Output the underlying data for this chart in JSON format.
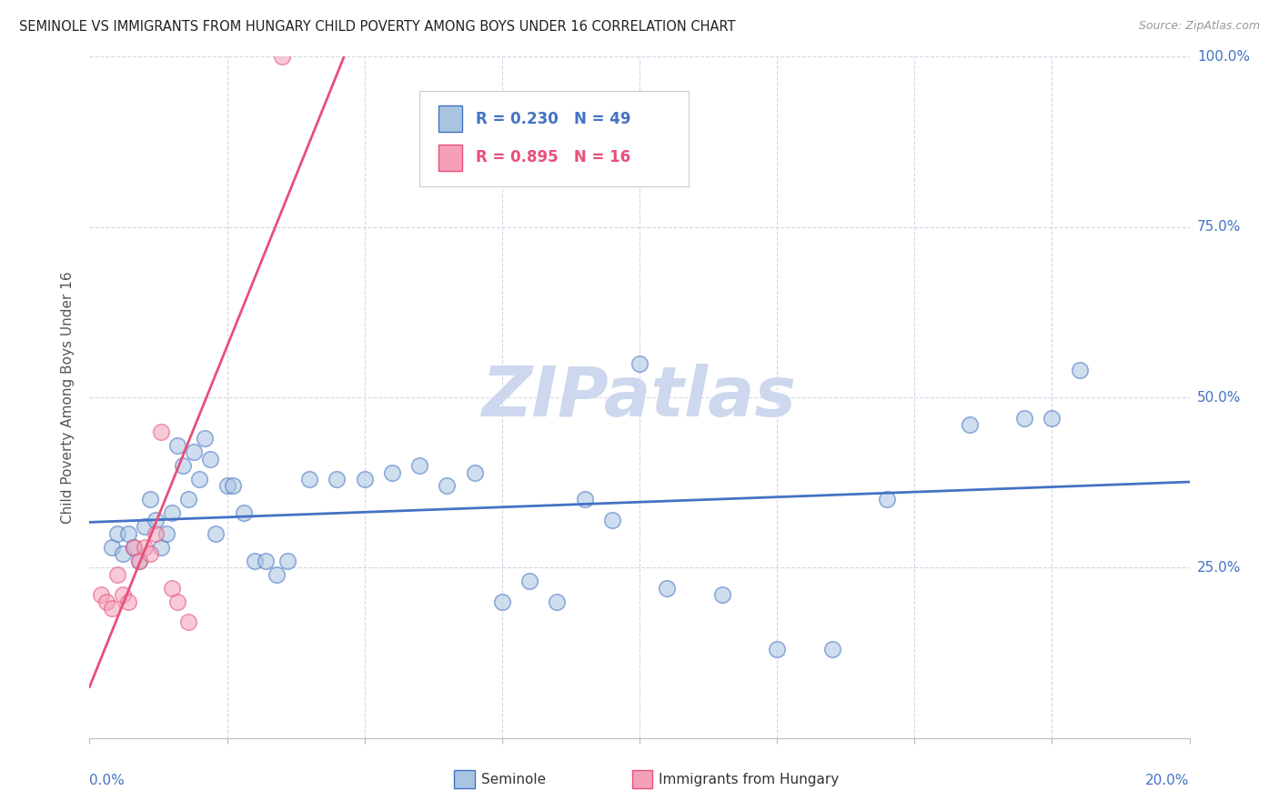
{
  "title": "SEMINOLE VS IMMIGRANTS FROM HUNGARY CHILD POVERTY AMONG BOYS UNDER 16 CORRELATION CHART",
  "source": "Source: ZipAtlas.com",
  "ylabel": "Child Poverty Among Boys Under 16",
  "xlim": [
    0.0,
    20.0
  ],
  "ylim": [
    0.0,
    100.0
  ],
  "legend_entries": [
    {
      "label": "Seminole",
      "face_color": "#a8c4e0",
      "edge_color": "#4472c4",
      "R": "0.230",
      "N": "49"
    },
    {
      "label": "Immigrants from Hungary",
      "face_color": "#f4a0b8",
      "edge_color": "#e8507a",
      "R": "0.895",
      "N": "16"
    }
  ],
  "seminole_scatter": [
    [
      0.4,
      28
    ],
    [
      0.5,
      30
    ],
    [
      0.6,
      27
    ],
    [
      0.7,
      30
    ],
    [
      0.8,
      28
    ],
    [
      0.9,
      26
    ],
    [
      1.0,
      31
    ],
    [
      1.1,
      35
    ],
    [
      1.2,
      32
    ],
    [
      1.3,
      28
    ],
    [
      1.4,
      30
    ],
    [
      1.5,
      33
    ],
    [
      1.6,
      43
    ],
    [
      1.7,
      40
    ],
    [
      1.8,
      35
    ],
    [
      1.9,
      42
    ],
    [
      2.0,
      38
    ],
    [
      2.1,
      44
    ],
    [
      2.2,
      41
    ],
    [
      2.3,
      30
    ],
    [
      2.5,
      37
    ],
    [
      2.6,
      37
    ],
    [
      2.8,
      33
    ],
    [
      3.0,
      26
    ],
    [
      3.2,
      26
    ],
    [
      3.4,
      24
    ],
    [
      3.6,
      26
    ],
    [
      4.0,
      38
    ],
    [
      4.5,
      38
    ],
    [
      5.0,
      38
    ],
    [
      5.5,
      39
    ],
    [
      6.0,
      40
    ],
    [
      6.5,
      37
    ],
    [
      7.0,
      39
    ],
    [
      7.5,
      20
    ],
    [
      8.0,
      23
    ],
    [
      8.5,
      20
    ],
    [
      9.0,
      35
    ],
    [
      9.5,
      32
    ],
    [
      10.0,
      55
    ],
    [
      10.5,
      22
    ],
    [
      11.5,
      21
    ],
    [
      12.5,
      13
    ],
    [
      13.5,
      13
    ],
    [
      14.5,
      35
    ],
    [
      16.0,
      46
    ],
    [
      17.0,
      47
    ],
    [
      17.5,
      47
    ],
    [
      18.0,
      54
    ]
  ],
  "hungary_scatter": [
    [
      0.2,
      21
    ],
    [
      0.3,
      20
    ],
    [
      0.4,
      19
    ],
    [
      0.5,
      24
    ],
    [
      0.6,
      21
    ],
    [
      0.7,
      20
    ],
    [
      0.8,
      28
    ],
    [
      0.9,
      26
    ],
    [
      1.0,
      28
    ],
    [
      1.1,
      27
    ],
    [
      1.2,
      30
    ],
    [
      1.3,
      45
    ],
    [
      1.5,
      22
    ],
    [
      1.6,
      20
    ],
    [
      1.8,
      17
    ],
    [
      3.5,
      100
    ]
  ],
  "seminole_line_color": "#4472c4",
  "hungary_line_color": "#e8507a",
  "background_color": "#ffffff",
  "grid_color": "#d0d8e8",
  "axis_label_color": "#4472c4",
  "watermark_text": "ZIPatlas",
  "watermark_color": "#cdd8ee"
}
